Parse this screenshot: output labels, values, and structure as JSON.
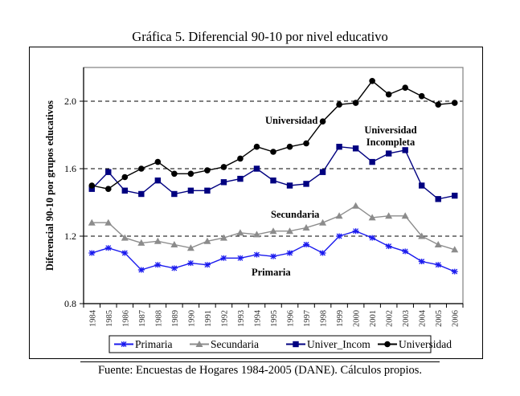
{
  "chart_data": {
    "type": "line",
    "title": "Gráfica 5. Diferencial 90-10 por nivel educativo",
    "xlabel": "",
    "ylabel": "Diferencial 90-10 por grupos educativos",
    "ylim": [
      0.8,
      2.2
    ],
    "yticks": [
      "0.8",
      "1.2",
      "1.6",
      "2.0"
    ],
    "ytick_values": [
      0.8,
      1.2,
      1.6,
      2.0
    ],
    "gridlines": {
      "style": "dashed",
      "values": [
        1.2,
        1.6,
        2.0
      ]
    },
    "legend_position": "bottom",
    "categories": [
      "1984",
      "1985",
      "1986",
      "1987",
      "1988",
      "1989",
      "1990",
      "1991",
      "1992",
      "1993",
      "1994",
      "1995",
      "1996",
      "1997",
      "1998",
      "1999",
      "2000",
      "2001",
      "2002",
      "2003",
      "2004",
      "2005",
      "2006"
    ],
    "series": [
      {
        "name": "Primaria",
        "color": "#1a1aee",
        "marker": "star",
        "values": [
          1.1,
          1.13,
          1.1,
          1.0,
          1.03,
          1.01,
          1.04,
          1.03,
          1.07,
          1.07,
          1.09,
          1.08,
          1.1,
          1.15,
          1.1,
          1.2,
          1.23,
          1.19,
          1.14,
          1.11,
          1.05,
          1.03,
          0.99
        ]
      },
      {
        "name": "Secundaria",
        "color": "#8c8c8c",
        "marker": "triangle",
        "values": [
          1.28,
          1.28,
          1.19,
          1.16,
          1.17,
          1.15,
          1.13,
          1.17,
          1.19,
          1.22,
          1.21,
          1.23,
          1.23,
          1.25,
          1.28,
          1.32,
          1.38,
          1.31,
          1.32,
          1.32,
          1.2,
          1.15,
          1.12
        ]
      },
      {
        "name": "Univer_Incom",
        "color": "#000080",
        "marker": "square",
        "values": [
          1.48,
          1.58,
          1.47,
          1.45,
          1.53,
          1.45,
          1.47,
          1.47,
          1.52,
          1.54,
          1.6,
          1.53,
          1.5,
          1.51,
          1.58,
          1.73,
          1.72,
          1.64,
          1.69,
          1.71,
          1.5,
          1.42,
          1.44
        ]
      },
      {
        "name": "Universidad",
        "color": "#000000",
        "marker": "circle",
        "values": [
          1.5,
          1.48,
          1.55,
          1.6,
          1.64,
          1.57,
          1.57,
          1.59,
          1.61,
          1.66,
          1.73,
          1.7,
          1.73,
          1.75,
          1.88,
          1.98,
          1.99,
          2.12,
          2.04,
          2.08,
          2.03,
          1.98,
          1.99
        ]
      }
    ],
    "annotations": [
      {
        "text": "Universidad",
        "near_series": "Universidad",
        "at_category": "1995"
      },
      {
        "text": "Universidad",
        "near_series": "Univer_Incom",
        "at_category": "2002"
      },
      {
        "text": "Incompleta",
        "near_series": "Univer_Incom",
        "at_category": "2002"
      },
      {
        "text": "Secundaria",
        "near_series": "Secundaria",
        "at_category": "1996"
      },
      {
        "text": "Primaria",
        "near_series": "Primaria",
        "at_category": "1995"
      }
    ],
    "source": "Fuente: Encuestas de Hogares 1984-2005 (DANE). Cálculos propios."
  }
}
